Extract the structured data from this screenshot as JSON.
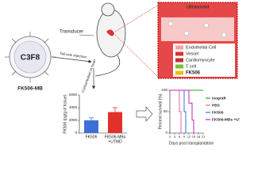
{
  "diagram": {
    "transducer": "Transducer",
    "ultrasound": "Ultrasound",
    "tail_vein": "Tail vein injection",
    "concentration": "Concentration in heart",
    "gas": "C3F8",
    "bubble": "FK506-MB",
    "legend": [
      "Endothelial Cell",
      "Vessel",
      "Cardiomyocyte",
      "T cell",
      "FK506"
    ]
  },
  "bar_chart": {
    "type": "bar",
    "ylabel": "FK506 (pg/g of tissue)",
    "categories": [
      [
        "FK506"
      ],
      [
        "FK506-MBs",
        "+UTMD"
      ]
    ],
    "values": [
      2000,
      3300
    ],
    "errors": [
      400,
      700
    ],
    "colors": [
      "#3d6fd8",
      "#e2302b"
    ],
    "ylim": [
      0,
      6000
    ],
    "yticks": [
      0,
      2000,
      4000,
      6000
    ]
  },
  "survival_chart": {
    "type": "line",
    "ylabel": "Percent survival (%)",
    "xlabel": "Days post transplantation",
    "xlim": [
      0,
      21
    ],
    "xticks": [
      0,
      3,
      6,
      9,
      12,
      15,
      18,
      21
    ],
    "ylim": [
      0,
      100
    ],
    "yticks": [
      0,
      50,
      100
    ],
    "series": [
      {
        "name": "Isograft",
        "color": "#2ca02c",
        "x": [
          0,
          21
        ],
        "values": [
          100,
          100
        ]
      },
      {
        "name": "PBS",
        "color": "#e8609a",
        "x": [
          0,
          6,
          6,
          7,
          7
        ],
        "values": [
          100,
          100,
          50,
          50,
          0
        ]
      },
      {
        "name": "FK506",
        "color": "#3d6fd8",
        "x": [
          0,
          9,
          9,
          10,
          10
        ],
        "values": [
          100,
          100,
          50,
          50,
          0
        ]
      },
      {
        "name": "FK506-MBs +UTMD",
        "color": "#c026c0",
        "x": [
          0,
          12,
          12,
          14,
          14,
          15,
          15
        ],
        "values": [
          100,
          100,
          70,
          70,
          30,
          30,
          0
        ]
      }
    ]
  }
}
